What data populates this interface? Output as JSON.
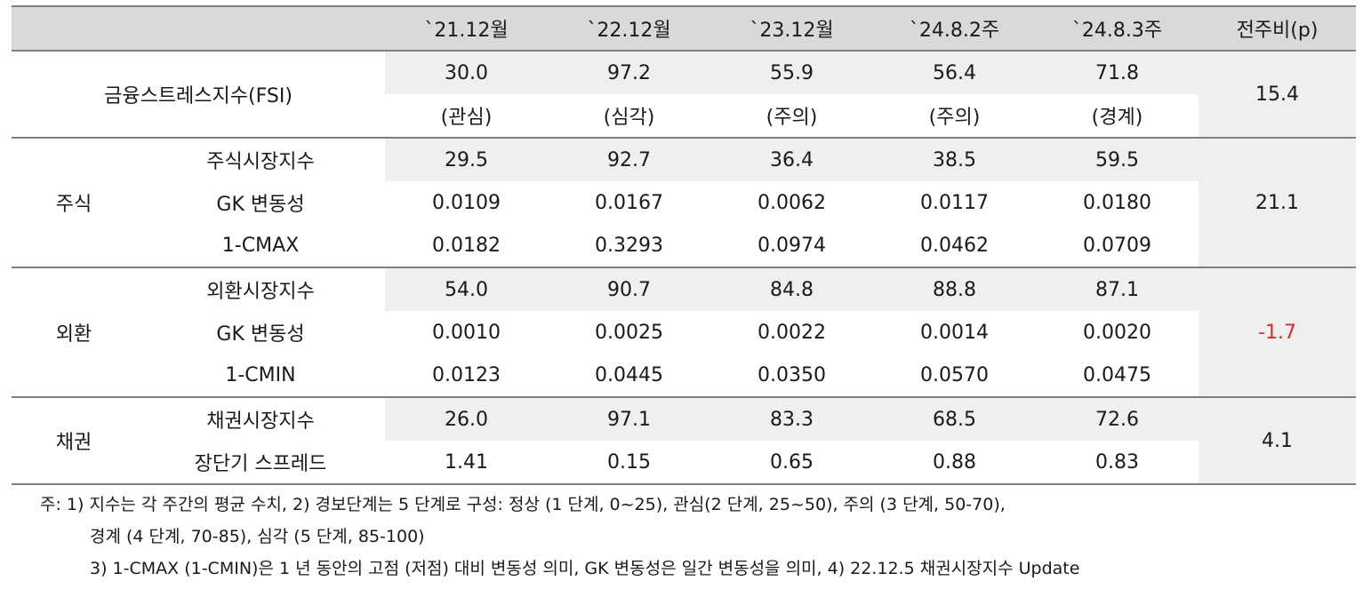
{
  "header": {
    "corner": "",
    "cols": [
      "`21.12월",
      "`22.12월",
      "`23.12월",
      "`24.8.2주",
      "`24.8.3주",
      "전주비(p)"
    ]
  },
  "fsi": {
    "label": "금융스트레스지수(FSI)",
    "values": [
      "30.0",
      "97.2",
      "55.9",
      "56.4",
      "71.8"
    ],
    "levels": [
      "(관심)",
      "(심각)",
      "(주의)",
      "(주의)",
      "(경계)"
    ],
    "change": "15.4"
  },
  "stock": {
    "group": "주식",
    "change": "21.1",
    "rows": [
      {
        "label": "주식시장지수",
        "values": [
          "29.5",
          "92.7",
          "36.4",
          "38.5",
          "59.5"
        ]
      },
      {
        "label": "GK 변동성",
        "values": [
          "0.0109",
          "0.0167",
          "0.0062",
          "0.0117",
          "0.0180"
        ]
      },
      {
        "label": "1-CMAX",
        "values": [
          "0.0182",
          "0.3293",
          "0.0974",
          "0.0462",
          "0.0709"
        ]
      }
    ]
  },
  "fx": {
    "group": "외환",
    "change": "-1.7",
    "rows": [
      {
        "label": "외환시장지수",
        "values": [
          "54.0",
          "90.7",
          "84.8",
          "88.8",
          "87.1"
        ]
      },
      {
        "label": "GK 변동성",
        "values": [
          "0.0010",
          "0.0025",
          "0.0022",
          "0.0014",
          "0.0020"
        ]
      },
      {
        "label": "1-CMIN",
        "values": [
          "0.0123",
          "0.0445",
          "0.0350",
          "0.0570",
          "0.0475"
        ]
      }
    ]
  },
  "bond": {
    "group": "채권",
    "change": "4.1",
    "rows": [
      {
        "label": "채권시장지수",
        "values": [
          "26.0",
          "97.1",
          "83.3",
          "68.5",
          "72.6"
        ]
      },
      {
        "label": "장단기 스프레드",
        "values": [
          "1.41",
          "0.15",
          "0.65",
          "0.88",
          "0.83"
        ]
      }
    ]
  },
  "notes": [
    "주: 1) 지수는 각 주간의 평균 수치, 2) 경보단계는 5 단계로 구성: 정상 (1 단계, 0~25), 관심(2 단계, 25~50), 주의 (3 단계, 50-70),",
    "경계 (4 단계, 70-85), 심각 (5 단계, 85-100)",
    "3) 1-CMAX (1-CMIN)은 1 년 동안의 고점 (저점) 대비 변동성 의미, GK 변동성은 일간 변동성을 의미, 4) 22.12.5 채권시장지수 Update"
  ],
  "colors": {
    "header_bg": "#d9d9d9",
    "shade_bg": "#efefef",
    "negative": "#e6242a",
    "rule": "#7f7f7f"
  }
}
